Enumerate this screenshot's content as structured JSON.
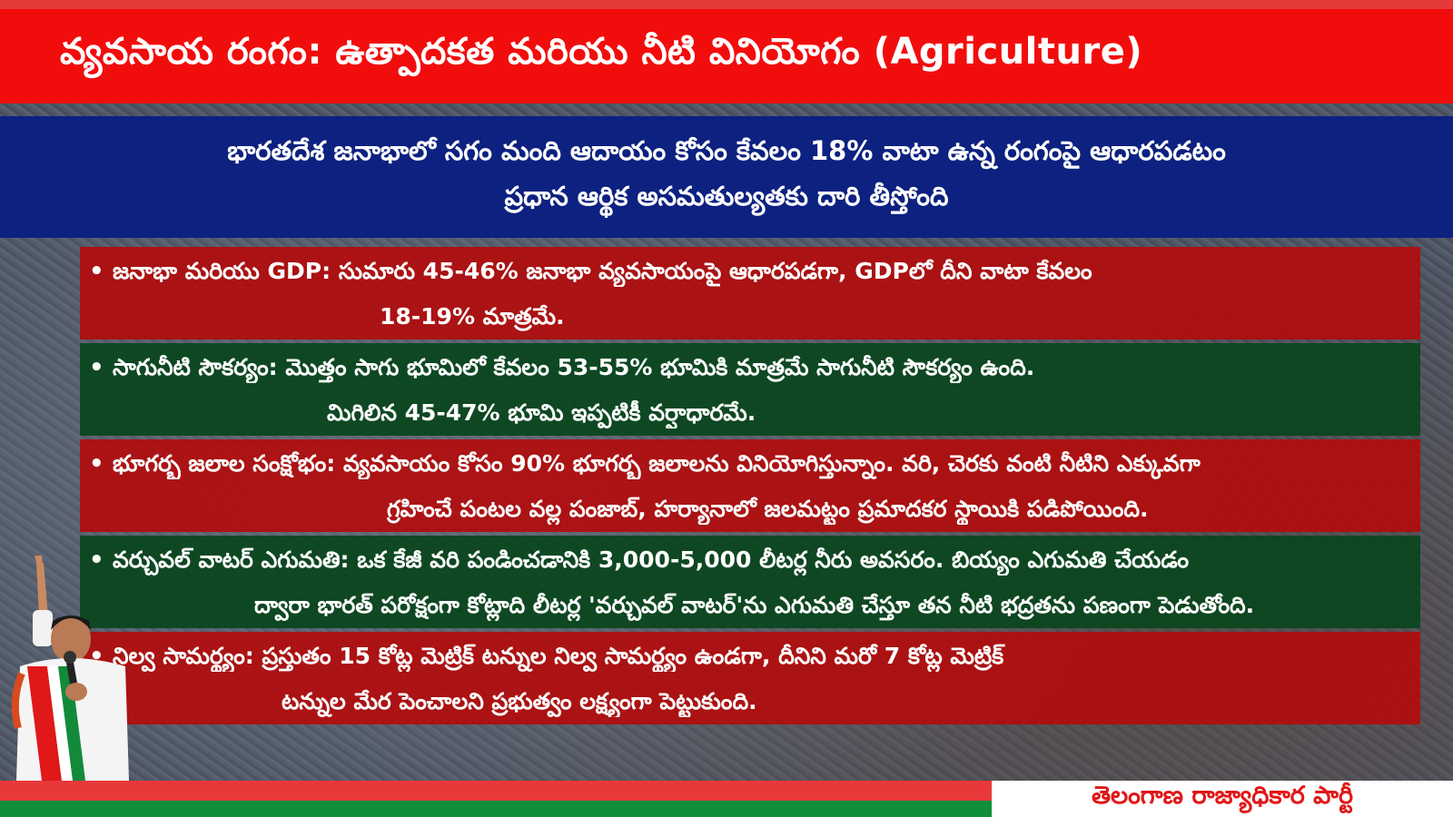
{
  "title": "వ్యవసాయ రంగం: ఉత్పాదకత మరియు నీటి వినియోగం (Agriculture)",
  "subtitle": {
    "line1": "భారతదేశ జనాభాలో సగం మంది ఆదాయం కోసం కేవలం 18% వాటా ఉన్న రంగంపై ఆధారపడటం",
    "line2": "ప్రధాన ఆర్థిక అసమతుల్యతకు దారి తీస్తోంది"
  },
  "points": [
    {
      "line1": "జనాభా మరియు GDP: సుమారు 45-46% జనాభా వ్యవసాయంపై ఆధారపడగా, GDPలో దీని వాటా కేవలం",
      "line2": "18-19% మాత్రమే.",
      "color": "#b20c0c"
    },
    {
      "line1": "సాగునీటి సౌకర్యం: మొత్తం సాగు భూమిలో కేవలం 53-55% భూమికి మాత్రమే సాగునీటి సౌకర్యం ఉంది.",
      "line2": "మిగిలిన 45-47% భూమి ఇప్పటికీ వర్షాధారమే.",
      "color": "#0a461e"
    },
    {
      "line1": "భూగర్భ జలాల సంక్షోభం: వ్యవసాయం కోసం 90% భూగర్భ జలాలను వినియోగిస్తున్నాం. వరి, చెరకు వంటి నీటిని ఎక్కువగా",
      "line2": "గ్రహించే పంటల వల్ల పంజాబ్, హర్యానాలో జలమట్టం ప్రమాదకర స్థాయికి పడిపోయింది.",
      "color": "#b20c0c"
    },
    {
      "line1": "వర్చువల్ వాటర్ ఎగుమతి: ఒక కేజీ వరి పండించడానికి 3,000-5,000 లీటర్ల నీరు అవసరం. బియ్యం ఎగుమతి  చేయడం",
      "line2": "ద్వారా భారత్ పరోక్షంగా కోట్లాది లీటర్ల 'వర్చువల్ వాటర్'ను ఎగుమతి చేస్తూ తన నీటి భద్రతను పణంగా పెడుతోంది.",
      "color": "#0a461e"
    },
    {
      "line1": "నిల్వ సామర్థ్యం: ప్రస్తుతం 15 కోట్ల మెట్రిక్ టన్నుల నిల్వ సామర్థ్యం ఉండగా, దీనిని మరో 7 కోట్ల మెట్రిక్",
      "line2": "టన్నుల మేర పెంచాలని ప్రభుత్వం లక్ష్యంగా పెట్టుకుంది.",
      "color": "#b20c0c"
    }
  ],
  "footer": {
    "party_name": "తెలంగాణ రాజ్యాధికార పార్టీ",
    "stripe_colors": [
      "#e8383a",
      "#0f8f3a"
    ]
  },
  "colors": {
    "title_bg": "#f20d0d",
    "subtitle_bg": "#0d2180",
    "party_text": "#e01818"
  },
  "decorations": {
    "person_image": "speaker-with-microphone-photo"
  }
}
